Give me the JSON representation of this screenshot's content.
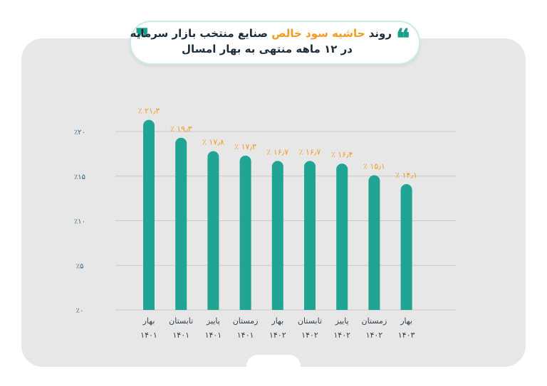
{
  "header": {
    "title_prefix": "روند",
    "title_accent": "حاشیه سود خالص",
    "title_suffix": "صنایع منتخب بازار سرمایه",
    "title_line2": "در ۱۲ ماهه منتهی به بهار امسال",
    "quote_open": "❝",
    "quote_close": "❞"
  },
  "colors": {
    "bar": "#20a493",
    "accent": "#f49a22",
    "panel": "#e7e7e7",
    "axis_text": "#31607f"
  },
  "chart_data": {
    "type": "bar",
    "categories": [
      {
        "season": "بهار",
        "year": "۱۴۰۱"
      },
      {
        "season": "تابستان",
        "year": "۱۴۰۱"
      },
      {
        "season": "پاییز",
        "year": "۱۴۰۱"
      },
      {
        "season": "زمستان",
        "year": "۱۴۰۱"
      },
      {
        "season": "بهار",
        "year": "۱۴۰۲"
      },
      {
        "season": "تابستان",
        "year": "۱۴۰۲"
      },
      {
        "season": "پاییز",
        "year": "۱۴۰۲"
      },
      {
        "season": "زمستان",
        "year": "۱۴۰۲"
      },
      {
        "season": "بهار",
        "year": "۱۴۰۳"
      }
    ],
    "values": [
      21.3,
      19.3,
      17.8,
      17.3,
      16.7,
      16.7,
      16.4,
      15.1,
      14.1
    ],
    "value_labels": [
      "٪ ۲۱٫۳",
      "٪ ۱۹٫۳",
      "٪ ۱۷٫۸",
      "٪ ۱۷٫۳",
      "٪ ۱۶٫۷",
      "٪ ۱۶٫۷",
      "٪ ۱۶٫۴",
      "٪ ۱۵٫۱",
      "٪ ۱۴٫۱"
    ],
    "ylim": [
      0,
      20
    ],
    "yticks": [
      0,
      5,
      10,
      15,
      20
    ],
    "ytick_labels": [
      "٪۰",
      "٪۵",
      "٪۱۰",
      "٪۱۵",
      "٪۲۰"
    ],
    "grid": true,
    "title": "",
    "xlabel": "",
    "ylabel": ""
  }
}
